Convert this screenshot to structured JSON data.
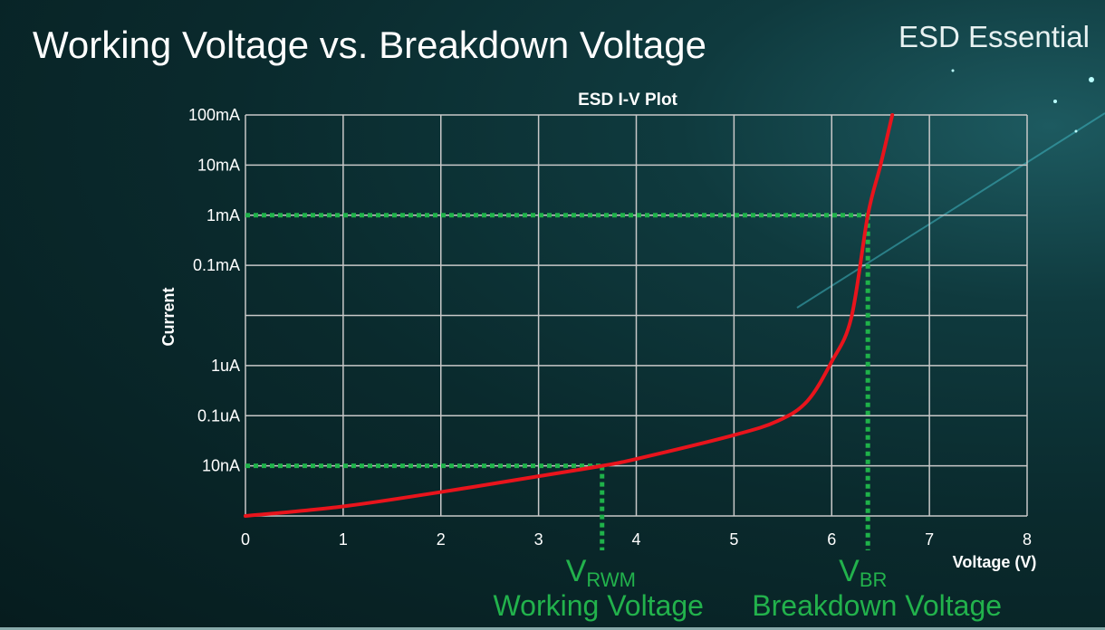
{
  "slide": {
    "title": "Working Voltage vs. Breakdown Voltage",
    "brand": "ESD Essential"
  },
  "colors": {
    "curve": "#e8141c",
    "reference": "#1fb24a",
    "annotation": "#22b24c",
    "grid": "#c8c8c8"
  },
  "chart_data": {
    "type": "line",
    "title": "ESD I-V Plot",
    "xlabel": "Voltage (V)",
    "ylabel": "Current",
    "xlim": [
      0,
      8
    ],
    "ylim": [
      1e-09,
      0.1
    ],
    "yscale": "log",
    "grid": true,
    "xticks": [
      0,
      1,
      2,
      3,
      4,
      5,
      6,
      7,
      8
    ],
    "xtick_labels": [
      "0",
      "1",
      "2",
      "3",
      "4",
      "5",
      "6",
      "7",
      "8"
    ],
    "yticks": [
      1e-08,
      1e-07,
      1e-06,
      1e-05,
      0.0001,
      0.001,
      0.01,
      0.1
    ],
    "ytick_labels": [
      "10nA",
      "0.1uA",
      "1uA",
      "",
      "0.1mA",
      "1mA",
      "10mA",
      "100mA"
    ],
    "series": [
      {
        "x": [
          0,
          1.0,
          2.0,
          3.0,
          3.65,
          4.0,
          5.0,
          5.45,
          5.75,
          6.0,
          6.2,
          6.37,
          6.5,
          6.62
        ],
        "y": [
          1e-09,
          1.55e-09,
          3e-09,
          6.2e-09,
          1e-08,
          1.37e-08,
          4.1e-08,
          7.9e-08,
          1.95e-07,
          1.2e-06,
          8.9e-06,
          0.001,
          0.01,
          0.1
        ]
      }
    ],
    "reference_lines": [
      {
        "x": 3.65,
        "y": 1e-08,
        "label": "V",
        "subscript": "RWM",
        "description": "Working Voltage"
      },
      {
        "x": 6.37,
        "y": 0.001,
        "label": "V",
        "subscript": "BR",
        "description": "Breakdown Voltage"
      }
    ]
  }
}
